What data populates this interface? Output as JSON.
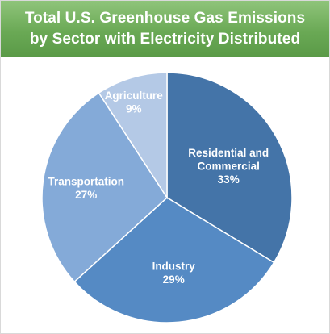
{
  "header": {
    "title_line1": "Total U.S. Greenhouse Gas Emissions",
    "title_line2": "by Sector with Electricity Distributed"
  },
  "chart_data": {
    "type": "pie",
    "title": "Total U.S. Greenhouse Gas Emissions by Sector with Electricity Distributed",
    "slices": [
      {
        "label": "Residential and Commercial",
        "label_lines": [
          "Residential and",
          "Commercial"
        ],
        "value": 33,
        "value_text": "33%",
        "color": "#4474a8"
      },
      {
        "label": "Industry",
        "label_lines": [
          "Industry"
        ],
        "value": 29,
        "value_text": "29%",
        "color": "#558ac4"
      },
      {
        "label": "Transportation",
        "label_lines": [
          "Transportation"
        ],
        "value": 27,
        "value_text": "27%",
        "color": "#84aad8"
      },
      {
        "label": "Agriculture",
        "label_lines": [
          "Agriculture"
        ],
        "value": 9,
        "value_text": "9%",
        "color": "#b4c9e6"
      }
    ],
    "start_direction": "top",
    "order": "clockwise",
    "legend": "none"
  }
}
